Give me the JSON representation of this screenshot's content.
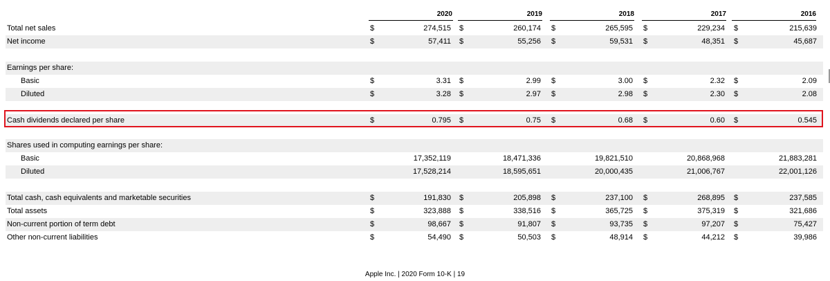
{
  "years": [
    "2020",
    "2019",
    "2018",
    "2017",
    "2016"
  ],
  "rows": [
    {
      "label": "Total net sales",
      "indent": 1,
      "currency": true,
      "values": [
        "274,515",
        "260,174",
        "265,595",
        "229,234",
        "215,639"
      ],
      "shade": false
    },
    {
      "label": "Net income",
      "indent": 1,
      "currency": true,
      "values": [
        "57,411",
        "55,256",
        "59,531",
        "48,351",
        "45,687"
      ],
      "shade": true
    },
    {
      "label": "",
      "indent": 1,
      "currency": false,
      "values": [],
      "shade": false
    },
    {
      "label": "Earnings per share:",
      "indent": 1,
      "currency": false,
      "values": [],
      "shade": true
    },
    {
      "label": "Basic",
      "indent": 2,
      "currency": true,
      "values": [
        "3.31",
        "2.99",
        "3.00",
        "2.32",
        "2.09"
      ],
      "shade": false
    },
    {
      "label": "Diluted",
      "indent": 2,
      "currency": true,
      "values": [
        "3.28",
        "2.97",
        "2.98",
        "2.30",
        "2.08"
      ],
      "shade": true
    },
    {
      "label": "",
      "indent": 1,
      "currency": false,
      "values": [],
      "shade": false
    },
    {
      "label": "Cash dividends declared per share",
      "indent": 1,
      "currency": true,
      "values": [
        "0.795",
        "0.75",
        "0.68",
        "0.60",
        "0.545"
      ],
      "shade": true,
      "highlight": true
    },
    {
      "label": "",
      "indent": 1,
      "currency": false,
      "values": [],
      "shade": false
    },
    {
      "label": "Shares used in computing earnings per share:",
      "indent": 1,
      "currency": false,
      "values": [],
      "shade": true
    },
    {
      "label": "Basic",
      "indent": 2,
      "currency": false,
      "values": [
        "17,352,119",
        "18,471,336",
        "19,821,510",
        "20,868,968",
        "21,883,281"
      ],
      "shade": false
    },
    {
      "label": "Diluted",
      "indent": 2,
      "currency": false,
      "values": [
        "17,528,214",
        "18,595,651",
        "20,000,435",
        "21,006,767",
        "22,001,126"
      ],
      "shade": true
    },
    {
      "label": "",
      "indent": 1,
      "currency": false,
      "values": [],
      "shade": false
    },
    {
      "label": "Total cash, cash equivalents and marketable securities",
      "indent": 1,
      "currency": true,
      "values": [
        "191,830",
        "205,898",
        "237,100",
        "268,895",
        "237,585"
      ],
      "shade": true
    },
    {
      "label": "Total assets",
      "indent": 1,
      "currency": true,
      "values": [
        "323,888",
        "338,516",
        "365,725",
        "375,319",
        "321,686"
      ],
      "shade": false
    },
    {
      "label": "Non-current portion of term debt",
      "indent": 1,
      "currency": true,
      "values": [
        "98,667",
        "91,807",
        "93,735",
        "97,207",
        "75,427"
      ],
      "shade": true
    },
    {
      "label": "Other non-current liabilities",
      "indent": 1,
      "currency": true,
      "values": [
        "54,490",
        "50,503",
        "48,914",
        "44,212",
        "39,986"
      ],
      "shade": false
    }
  ],
  "currency_symbol": "$",
  "footer": "Apple Inc. | 2020 Form 10-K | 19",
  "colors": {
    "highlight": "#e0141e",
    "row_shade": "#eeeeee"
  }
}
